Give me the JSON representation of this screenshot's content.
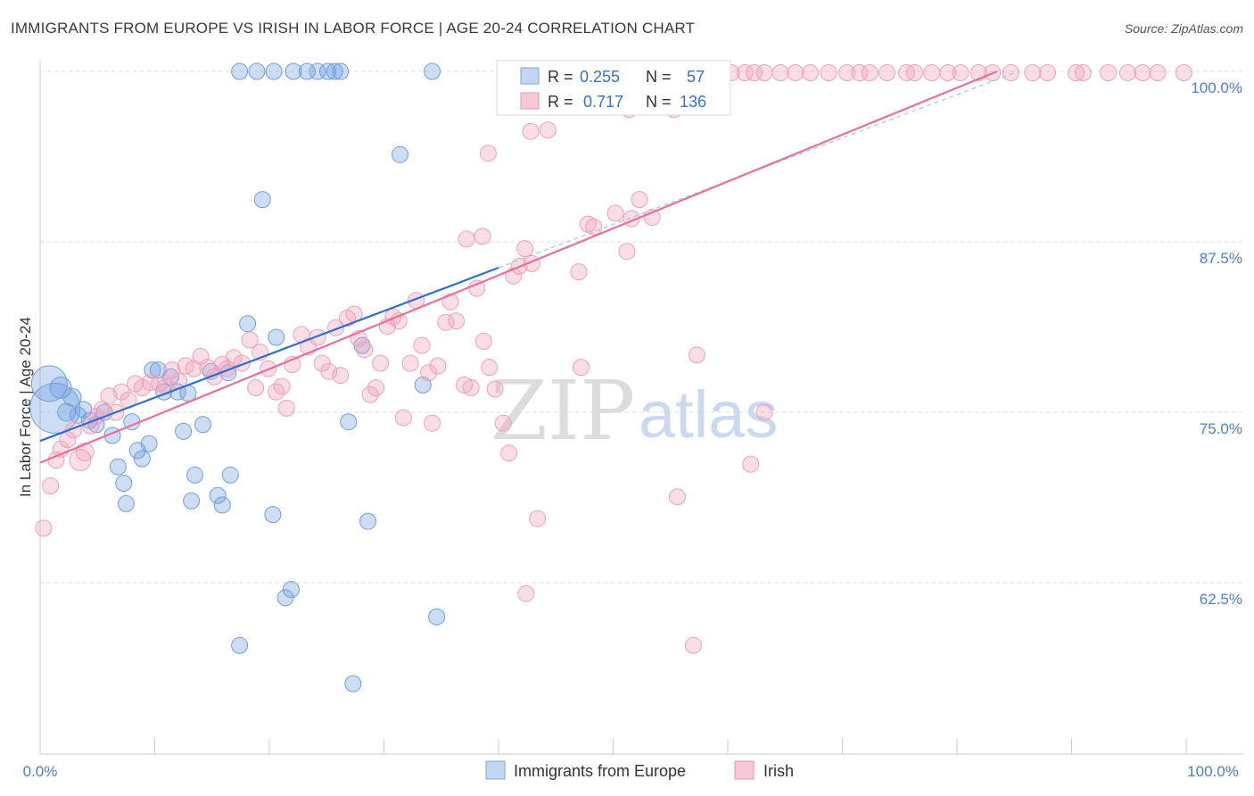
{
  "title": "IMMIGRANTS FROM EUROPE VS IRISH IN LABOR FORCE | AGE 20-24 CORRELATION CHART",
  "source": "Source: ZipAtlas.com",
  "watermark": {
    "part1": "ZIP",
    "part2": "atlas"
  },
  "legend_box": {
    "rows": [
      {
        "r_label": "R =",
        "r_value": "0.255",
        "n_label": "N =",
        "n_value": "57"
      },
      {
        "r_label": "R =",
        "r_value": "0.717",
        "n_label": "N =",
        "n_value": "136"
      }
    ]
  },
  "bottom_legend": [
    "Immigrants from Europe",
    "Irish"
  ],
  "colors": {
    "blue": "#6f9fe0",
    "blue_line": "#2f6fcf",
    "pink": "#f0a0b8",
    "pink_line": "#e7709a",
    "tick": "#4a7fd0"
  },
  "chart_data": {
    "type": "scatter",
    "title": "IMMIGRANTS FROM EUROPE VS IRISH IN LABOR FORCE | AGE 20-24 CORRELATION CHART",
    "xlabel": "",
    "ylabel": "In Labor Force | Age 20-24",
    "xlim": [
      0,
      100
    ],
    "ylim": [
      50,
      100
    ],
    "x_tick_labels": [
      "0.0%",
      "100.0%"
    ],
    "y_ticks": [
      62.5,
      75.0,
      87.5,
      100.0
    ],
    "y_tick_labels": [
      "62.5%",
      "75.0%",
      "87.5%",
      "100.0%"
    ],
    "grid": "horizontal dashed",
    "legend_position": "top-center",
    "series": [
      {
        "name": "Immigrants from Europe",
        "r": 0.255,
        "n": 57,
        "trend": {
          "x": [
            0,
            40
          ],
          "y": [
            72.9,
            85.6
          ]
        },
        "points": [
          [
            0.8,
            77.1,
            20
          ],
          [
            1.3,
            75.3,
            28
          ],
          [
            1.8,
            76.8,
            12
          ],
          [
            2.3,
            75.0,
            10
          ],
          [
            2.8,
            76.1,
            10
          ],
          [
            3.3,
            74.8,
            9
          ],
          [
            3.8,
            75.2,
            9
          ],
          [
            4.3,
            74.4,
            9
          ],
          [
            4.9,
            74.1,
            9
          ],
          [
            5.6,
            75.0,
            9
          ],
          [
            6.3,
            73.3,
            9
          ],
          [
            6.8,
            71.0,
            9
          ],
          [
            7.3,
            69.8,
            9
          ],
          [
            7.5,
            68.3,
            9
          ],
          [
            8.0,
            74.3,
            9
          ],
          [
            8.5,
            72.2,
            9
          ],
          [
            8.9,
            71.6,
            9
          ],
          [
            9.5,
            72.7,
            9
          ],
          [
            9.8,
            78.1,
            9
          ],
          [
            10.3,
            78.1,
            9
          ],
          [
            10.8,
            76.5,
            9
          ],
          [
            11.4,
            77.6,
            9
          ],
          [
            12.0,
            76.5,
            9
          ],
          [
            12.5,
            73.6,
            9
          ],
          [
            12.9,
            76.4,
            9
          ],
          [
            13.2,
            68.5,
            9
          ],
          [
            13.5,
            70.4,
            9
          ],
          [
            14.2,
            74.1,
            9
          ],
          [
            14.9,
            78.0,
            9
          ],
          [
            15.5,
            68.9,
            9
          ],
          [
            15.9,
            68.2,
            9
          ],
          [
            16.4,
            77.9,
            9
          ],
          [
            16.6,
            70.4,
            9
          ],
          [
            17.4,
            57.9,
            9
          ],
          [
            18.1,
            81.5,
            9
          ],
          [
            19.4,
            90.6,
            9
          ],
          [
            20.6,
            80.5,
            9
          ],
          [
            20.3,
            67.5,
            9
          ],
          [
            21.4,
            61.4,
            9
          ],
          [
            21.9,
            62.0,
            9
          ],
          [
            26.9,
            74.3,
            9
          ],
          [
            27.3,
            55.1,
            9
          ],
          [
            28.1,
            79.9,
            9
          ],
          [
            28.6,
            67.0,
            9
          ],
          [
            33.4,
            77.0,
            9
          ],
          [
            34.6,
            60.0,
            9
          ],
          [
            31.4,
            93.9,
            9
          ],
          [
            17.4,
            100,
            9
          ],
          [
            18.9,
            100,
            9
          ],
          [
            20.4,
            100,
            9
          ],
          [
            22.1,
            100,
            9
          ],
          [
            23.3,
            100,
            9
          ],
          [
            24.2,
            100,
            9
          ],
          [
            25.1,
            100,
            9
          ],
          [
            25.7,
            100,
            9
          ],
          [
            26.2,
            100,
            9
          ],
          [
            34.2,
            100,
            9
          ]
        ]
      },
      {
        "name": "Irish",
        "r": 0.717,
        "n": 136,
        "trend": {
          "x": [
            0,
            83.5
          ],
          "y": [
            71.3,
            100
          ]
        },
        "points": [
          [
            0.3,
            66.5,
            9
          ],
          [
            0.9,
            69.6,
            9
          ],
          [
            1.4,
            71.5,
            9
          ],
          [
            1.8,
            72.3,
            9
          ],
          [
            2.4,
            73.0,
            9
          ],
          [
            2.9,
            73.7,
            9
          ],
          [
            3.5,
            71.5,
            12
          ],
          [
            3.9,
            72.1,
            10
          ],
          [
            4.4,
            74.0,
            9
          ],
          [
            4.9,
            74.7,
            9
          ],
          [
            5.4,
            75.2,
            9
          ],
          [
            6.0,
            76.2,
            9
          ],
          [
            6.6,
            75.0,
            9
          ],
          [
            7.1,
            76.5,
            9
          ],
          [
            7.7,
            75.9,
            9
          ],
          [
            8.3,
            77.1,
            9
          ],
          [
            8.9,
            76.8,
            9
          ],
          [
            9.6,
            77.2,
            9
          ],
          [
            10.4,
            77.1,
            9
          ],
          [
            11.0,
            76.9,
            9
          ],
          [
            11.5,
            78.1,
            9
          ],
          [
            12.1,
            77.3,
            9
          ],
          [
            12.7,
            78.4,
            9
          ],
          [
            13.4,
            78.2,
            9
          ],
          [
            14.0,
            79.1,
            9
          ],
          [
            14.6,
            78.3,
            9
          ],
          [
            15.2,
            77.6,
            9
          ],
          [
            15.9,
            78.5,
            9
          ],
          [
            16.3,
            78.2,
            9
          ],
          [
            16.9,
            79.0,
            9
          ],
          [
            17.6,
            78.6,
            9
          ],
          [
            18.3,
            80.3,
            9
          ],
          [
            18.8,
            76.8,
            9
          ],
          [
            19.2,
            79.4,
            9
          ],
          [
            19.9,
            78.2,
            9
          ],
          [
            20.6,
            76.5,
            9
          ],
          [
            21.1,
            76.9,
            9
          ],
          [
            21.5,
            75.3,
            9
          ],
          [
            22.0,
            78.5,
            9
          ],
          [
            22.8,
            80.7,
            9
          ],
          [
            23.4,
            79.8,
            9
          ],
          [
            24.2,
            80.5,
            9
          ],
          [
            24.6,
            78.6,
            9
          ],
          [
            25.2,
            78.0,
            9
          ],
          [
            25.8,
            81.2,
            9
          ],
          [
            26.2,
            77.7,
            9
          ],
          [
            26.8,
            81.9,
            9
          ],
          [
            27.4,
            82.2,
            9
          ],
          [
            27.8,
            80.4,
            9
          ],
          [
            28.3,
            79.6,
            9
          ],
          [
            28.8,
            76.3,
            9
          ],
          [
            29.3,
            76.8,
            9
          ],
          [
            29.7,
            78.6,
            9
          ],
          [
            30.3,
            81.3,
            9
          ],
          [
            30.8,
            82.0,
            9
          ],
          [
            31.3,
            81.7,
            9
          ],
          [
            31.7,
            74.6,
            9
          ],
          [
            32.3,
            78.6,
            9
          ],
          [
            32.8,
            83.2,
            9
          ],
          [
            33.3,
            79.9,
            9
          ],
          [
            33.9,
            77.9,
            9
          ],
          [
            34.2,
            74.2,
            9
          ],
          [
            34.7,
            78.4,
            9
          ],
          [
            35.4,
            81.6,
            9
          ],
          [
            35.8,
            83.1,
            9
          ],
          [
            36.3,
            81.7,
            9
          ],
          [
            37.0,
            77.0,
            9
          ],
          [
            37.6,
            76.8,
            9
          ],
          [
            38.1,
            84.1,
            9
          ],
          [
            38.7,
            80.2,
            9
          ],
          [
            39.2,
            78.3,
            9
          ],
          [
            39.7,
            76.7,
            9
          ],
          [
            40.4,
            74.2,
            9
          ],
          [
            40.9,
            72.0,
            9
          ],
          [
            41.3,
            85.0,
            9
          ],
          [
            41.8,
            85.7,
            9
          ],
          [
            42.3,
            87.0,
            9
          ],
          [
            42.9,
            85.9,
            9
          ],
          [
            43.4,
            67.2,
            9
          ],
          [
            44.3,
            95.7,
            9
          ],
          [
            47.0,
            85.3,
            9
          ],
          [
            47.8,
            88.8,
            9
          ],
          [
            48.3,
            88.6,
            9
          ],
          [
            50.2,
            89.6,
            9
          ],
          [
            51.2,
            86.8,
            9
          ],
          [
            51.6,
            89.2,
            9
          ],
          [
            52.3,
            90.6,
            9
          ],
          [
            53.4,
            89.3,
            9
          ],
          [
            55.3,
            97.2,
            9
          ],
          [
            55.6,
            68.8,
            9
          ],
          [
            57.3,
            79.2,
            9
          ],
          [
            37.2,
            87.7,
            9
          ],
          [
            38.6,
            87.9,
            9
          ],
          [
            39.1,
            94.0,
            9
          ],
          [
            42.8,
            95.6,
            9
          ],
          [
            47.2,
            78.3,
            9
          ],
          [
            51.4,
            97.2,
            9
          ],
          [
            63.2,
            75.0,
            9
          ],
          [
            62.0,
            71.2,
            9
          ],
          [
            57.0,
            57.9,
            9
          ],
          [
            42.4,
            61.7,
            9
          ],
          [
            50.3,
            99.9,
            9
          ],
          [
            52.5,
            99.9,
            9
          ],
          [
            54.6,
            99.9,
            9
          ],
          [
            55.7,
            99.9,
            9
          ],
          [
            57.2,
            99.9,
            9
          ],
          [
            58.5,
            99.9,
            9
          ],
          [
            59.4,
            99.9,
            9
          ],
          [
            60.3,
            99.9,
            9
          ],
          [
            61.5,
            99.9,
            9
          ],
          [
            62.3,
            99.9,
            9
          ],
          [
            63.2,
            99.9,
            9
          ],
          [
            64.6,
            99.9,
            9
          ],
          [
            65.9,
            99.9,
            9
          ],
          [
            67.2,
            99.9,
            9
          ],
          [
            68.8,
            99.9,
            9
          ],
          [
            70.4,
            99.9,
            9
          ],
          [
            71.5,
            99.9,
            9
          ],
          [
            72.4,
            99.9,
            9
          ],
          [
            73.9,
            99.9,
            9
          ],
          [
            75.6,
            99.9,
            9
          ],
          [
            76.3,
            99.9,
            9
          ],
          [
            77.8,
            99.9,
            9
          ],
          [
            79.2,
            99.9,
            9
          ],
          [
            80.3,
            99.9,
            9
          ],
          [
            81.9,
            99.9,
            9
          ],
          [
            83.1,
            99.9,
            9
          ],
          [
            84.7,
            99.9,
            9
          ],
          [
            86.6,
            99.9,
            9
          ],
          [
            87.9,
            99.9,
            9
          ],
          [
            90.4,
            99.9,
            9
          ],
          [
            91.0,
            99.9,
            9
          ],
          [
            93.2,
            99.9,
            9
          ],
          [
            94.9,
            99.9,
            9
          ],
          [
            96.2,
            99.9,
            9
          ],
          [
            97.5,
            99.9,
            9
          ],
          [
            99.8,
            99.9,
            9
          ]
        ]
      }
    ]
  }
}
